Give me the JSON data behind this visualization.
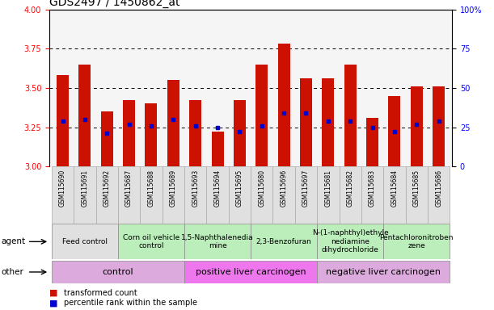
{
  "title": "GDS2497 / 1450862_at",
  "samples": [
    "GSM115690",
    "GSM115691",
    "GSM115692",
    "GSM115687",
    "GSM115688",
    "GSM115689",
    "GSM115693",
    "GSM115694",
    "GSM115695",
    "GSM115680",
    "GSM115696",
    "GSM115697",
    "GSM115681",
    "GSM115682",
    "GSM115683",
    "GSM115684",
    "GSM115685",
    "GSM115686"
  ],
  "bar_heights": [
    3.58,
    3.65,
    3.35,
    3.42,
    3.4,
    3.55,
    3.42,
    3.22,
    3.42,
    3.65,
    3.78,
    3.56,
    3.56,
    3.65,
    3.31,
    3.45,
    3.51,
    3.51
  ],
  "blue_marks": [
    3.29,
    3.3,
    3.21,
    3.27,
    3.26,
    3.3,
    3.26,
    3.25,
    3.22,
    3.26,
    3.34,
    3.34,
    3.29,
    3.29,
    3.25,
    3.22,
    3.27,
    3.29
  ],
  "ylim_left": [
    3.0,
    4.0
  ],
  "ylim_right": [
    0,
    100
  ],
  "yticks_left": [
    3.0,
    3.25,
    3.5,
    3.75,
    4.0
  ],
  "yticks_right": [
    0,
    25,
    50,
    75,
    100
  ],
  "bar_color": "#cc1100",
  "blue_color": "#0000cc",
  "bar_width": 0.55,
  "agents": [
    {
      "label": "Feed control",
      "start": 0,
      "end": 3,
      "color": "#e0e0e0"
    },
    {
      "label": "Corn oil vehicle\ncontrol",
      "start": 3,
      "end": 6,
      "color": "#bbeebb"
    },
    {
      "label": "1,5-Naphthalenedia\nmine",
      "start": 6,
      "end": 9,
      "color": "#bbeebb"
    },
    {
      "label": "2,3-Benzofuran",
      "start": 9,
      "end": 12,
      "color": "#bbeebb"
    },
    {
      "label": "N-(1-naphthyl)ethyle\nnediamine\ndihydrochloride",
      "start": 12,
      "end": 15,
      "color": "#bbeebb"
    },
    {
      "label": "Pentachloronitroben\nzene",
      "start": 15,
      "end": 18,
      "color": "#bbeebb"
    }
  ],
  "others": [
    {
      "label": "control",
      "start": 0,
      "end": 6,
      "color": "#ddaadd"
    },
    {
      "label": "positive liver carcinogen",
      "start": 6,
      "end": 12,
      "color": "#ee77ee"
    },
    {
      "label": "negative liver carcinogen",
      "start": 12,
      "end": 18,
      "color": "#ddaadd"
    }
  ],
  "agent_label": "agent",
  "other_label": "other",
  "legend_items": [
    {
      "label": "transformed count",
      "color": "#cc1100"
    },
    {
      "label": "percentile rank within the sample",
      "color": "#0000cc"
    }
  ],
  "sample_bg": "#e0e0e0",
  "plot_bg": "#f5f5f5",
  "fig_bg": "#ffffff",
  "grid_color": "black",
  "title_fontsize": 10,
  "tick_fontsize": 7,
  "sample_fontsize": 5.5,
  "legend_fontsize": 7,
  "agent_fontsize": 6.5,
  "other_fontsize": 8,
  "label_fontsize": 7.5
}
